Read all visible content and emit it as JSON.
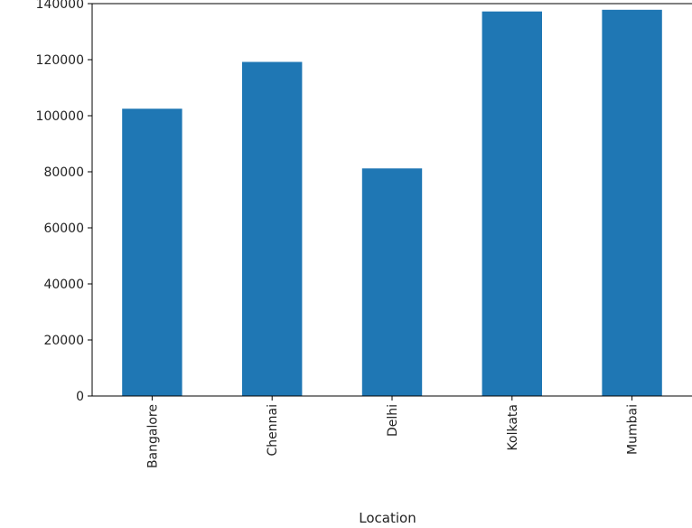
{
  "chart_data": {
    "type": "bar",
    "categories": [
      "Bangalore",
      "Chennai",
      "Delhi",
      "Kolkata",
      "Mumbai"
    ],
    "values": [
      102500,
      119200,
      81200,
      137200,
      137800
    ],
    "title": "",
    "xlabel": "Location",
    "ylabel": "",
    "ylim": [
      0,
      140000
    ],
    "yticks": [
      0,
      20000,
      40000,
      60000,
      80000,
      100000,
      120000,
      140000
    ],
    "ytick_labels": [
      "0",
      "20000",
      "40000",
      "60000",
      "80000",
      "100000",
      "120000",
      "140000"
    ],
    "grid": false,
    "legend": "none",
    "colors": {
      "bar": "#1f77b4"
    }
  }
}
